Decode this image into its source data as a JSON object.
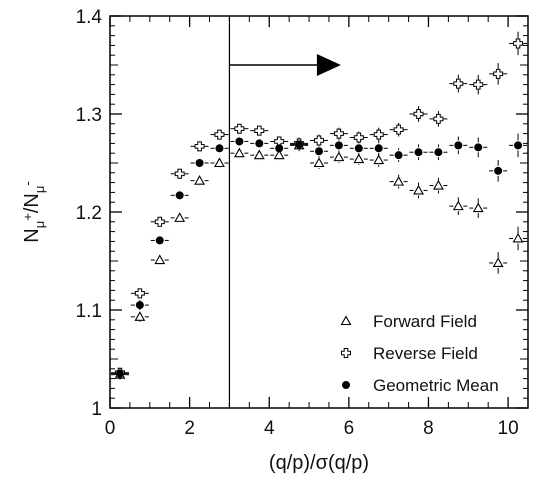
{
  "chart_data": {
    "type": "scatter",
    "xlabel": "(q/p)/σ(q/p)",
    "ylabel_main": "N",
    "ylabel_sub1": "μ",
    "ylabel_sup1": "+",
    "ylabel_slash": "/N",
    "ylabel_sub2": "μ",
    "ylabel_sup2": "-",
    "xlim": [
      0,
      10.5
    ],
    "ylim": [
      1.0,
      1.4
    ],
    "xticks": [
      0,
      2,
      4,
      6,
      8,
      10
    ],
    "yticks": [
      1,
      1.1,
      1.2,
      1.3,
      1.4
    ],
    "xtick_labels": [
      "0",
      "2",
      "4",
      "6",
      "8",
      "10"
    ],
    "ytick_labels": [
      "1",
      "1.1",
      "1.2",
      "1.3",
      "1.4"
    ],
    "grid": false,
    "legend_position": "bottom-right",
    "cut_line_x": 3,
    "arrow": {
      "x_start": 3,
      "x_end": 5.8,
      "y": 1.35
    },
    "series": [
      {
        "name": "Forward Field",
        "marker": "open-triangle",
        "x": [
          0.25,
          0.75,
          1.25,
          1.75,
          2.25,
          2.75,
          3.25,
          3.75,
          4.25,
          4.75,
          5.25,
          5.75,
          6.25,
          6.75,
          7.25,
          7.75,
          8.25,
          8.75,
          9.25,
          9.75,
          10.25
        ],
        "y": [
          1.034,
          1.093,
          1.151,
          1.194,
          1.232,
          1.25,
          1.26,
          1.258,
          1.258,
          1.268,
          1.25,
          1.256,
          1.254,
          1.253,
          1.231,
          1.222,
          1.227,
          1.206,
          1.204,
          1.148,
          1.173
        ],
        "yerr": [
          0.003,
          0.004,
          0.005,
          0.005,
          0.005,
          0.005,
          0.005,
          0.005,
          0.005,
          0.006,
          0.006,
          0.006,
          0.006,
          0.007,
          0.007,
          0.008,
          0.008,
          0.009,
          0.01,
          0.011,
          0.012
        ]
      },
      {
        "name": "Reverse Field",
        "marker": "open-cross",
        "x": [
          0.25,
          0.75,
          1.25,
          1.75,
          2.25,
          2.75,
          3.25,
          3.75,
          4.25,
          4.75,
          5.25,
          5.75,
          6.25,
          6.75,
          7.25,
          7.75,
          8.25,
          8.75,
          9.25,
          9.75,
          10.25
        ],
        "y": [
          1.036,
          1.117,
          1.19,
          1.239,
          1.267,
          1.279,
          1.285,
          1.283,
          1.272,
          1.27,
          1.273,
          1.28,
          1.276,
          1.279,
          1.284,
          1.3,
          1.295,
          1.331,
          1.33,
          1.341,
          1.372
        ],
        "yerr": [
          0.003,
          0.004,
          0.005,
          0.005,
          0.005,
          0.005,
          0.005,
          0.005,
          0.005,
          0.006,
          0.006,
          0.006,
          0.006,
          0.007,
          0.007,
          0.008,
          0.008,
          0.009,
          0.01,
          0.011,
          0.012
        ]
      },
      {
        "name": "Geometric Mean",
        "marker": "filled-circle",
        "x": [
          0.25,
          0.75,
          1.25,
          1.75,
          2.25,
          2.75,
          3.25,
          3.75,
          4.25,
          4.75,
          5.25,
          5.75,
          6.25,
          6.75,
          7.25,
          7.75,
          8.25,
          8.75,
          9.25,
          9.75,
          10.25
        ],
        "y": [
          1.035,
          1.105,
          1.171,
          1.217,
          1.25,
          1.265,
          1.272,
          1.27,
          1.265,
          1.269,
          1.262,
          1.268,
          1.265,
          1.265,
          1.258,
          1.261,
          1.261,
          1.268,
          1.266,
          1.242,
          1.268
        ],
        "yerr": [
          0.003,
          0.004,
          0.005,
          0.005,
          0.005,
          0.005,
          0.005,
          0.005,
          0.005,
          0.006,
          0.006,
          0.006,
          0.006,
          0.007,
          0.007,
          0.008,
          0.008,
          0.009,
          0.01,
          0.011,
          0.012
        ]
      }
    ]
  }
}
